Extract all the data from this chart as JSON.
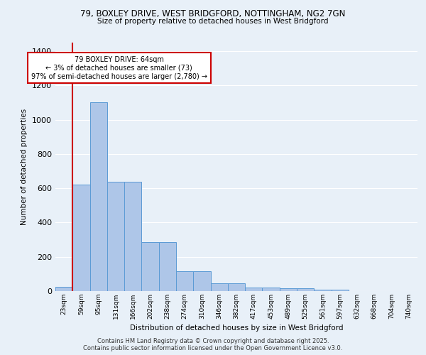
{
  "title_line1": "79, BOXLEY DRIVE, WEST BRIDGFORD, NOTTINGHAM, NG2 7GN",
  "title_line2": "Size of property relative to detached houses in West Bridgford",
  "xlabel": "Distribution of detached houses by size in West Bridgford",
  "ylabel": "Number of detached properties",
  "bin_labels": [
    "23sqm",
    "59sqm",
    "95sqm",
    "131sqm",
    "166sqm",
    "202sqm",
    "238sqm",
    "274sqm",
    "310sqm",
    "346sqm",
    "382sqm",
    "417sqm",
    "453sqm",
    "489sqm",
    "525sqm",
    "561sqm",
    "597sqm",
    "632sqm",
    "668sqm",
    "704sqm",
    "740sqm"
  ],
  "bar_values": [
    25,
    620,
    1100,
    640,
    640,
    285,
    285,
    115,
    115,
    45,
    45,
    20,
    20,
    15,
    15,
    10,
    10,
    0,
    0,
    0,
    0
  ],
  "bar_color": "#aec6e8",
  "bar_edge_color": "#5b9bd5",
  "vline_color": "#cc0000",
  "vline_x": 0.5,
  "annotation_text": "79 BOXLEY DRIVE: 64sqm\n← 3% of detached houses are smaller (73)\n97% of semi-detached houses are larger (2,780) →",
  "annotation_box_color": "#ffffff",
  "annotation_box_edge": "#cc0000",
  "background_color": "#e8f0f8",
  "grid_color": "#ffffff",
  "footer_line1": "Contains HM Land Registry data © Crown copyright and database right 2025.",
  "footer_line2": "Contains public sector information licensed under the Open Government Licence v3.0.",
  "ylim": [
    0,
    1450
  ],
  "yticks": [
    0,
    200,
    400,
    600,
    800,
    1000,
    1200,
    1400
  ]
}
